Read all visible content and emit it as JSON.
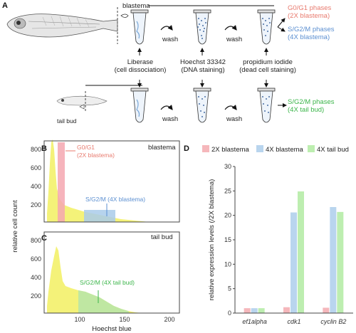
{
  "panel_a": {
    "label": "A",
    "blastema_label": "blastema",
    "tail_bud_label": "tail bud",
    "steps": [
      {
        "line1": "Liberase",
        "line2": "(cell dissociation)"
      },
      {
        "line1": "Hoechst 33342",
        "line2": "(DNA staining)"
      },
      {
        "line1": "propidium iodide",
        "line2": "(dead cell staining)"
      }
    ],
    "wash_label": "wash",
    "outputs_blastema": [
      {
        "line1": "G0/G1 phases",
        "line2": "(2X blastema)",
        "color": "#e87a6e"
      },
      {
        "line1": "S/G2/M phases",
        "line2": "(4X blastema)",
        "color": "#5b8fd1"
      }
    ],
    "output_tailbud": {
      "line1": "S/G2/M phases",
      "line2": "(4X tail bud)",
      "color": "#3bb54a"
    }
  },
  "panel_b": {
    "label": "B",
    "tag": "blastema",
    "annot_g0": "G0/G1",
    "annot_g0_sub": "(2X blastema)",
    "annot_s": "S/G2/M (4X blastema)",
    "colors": {
      "yellow": "#f4f279",
      "pink": "#f5a7b0",
      "blue": "#a9cbea",
      "green": "#b9e6a6"
    }
  },
  "panel_c": {
    "label": "C",
    "tag": "tail bud",
    "annot_s": "S/G2/M (4X tail bud)"
  },
  "hist_axes": {
    "ylabel": "relative cell count",
    "xlabel": "Hoechst blue",
    "xticks": [
      "100",
      "150",
      "200"
    ],
    "b_yticks": [
      "200",
      "400",
      "600",
      "800"
    ],
    "c_yticks": [
      "200",
      "400",
      "600",
      "800"
    ]
  },
  "panel_d": {
    "label": "D",
    "legend": [
      "2X blastema",
      "4X blastema",
      "4X tail bud"
    ],
    "colors": [
      "#f5b7bb",
      "#b9d5ee",
      "#bdeeb0"
    ],
    "ylabel": "relative expression levels (/2X blastema)",
    "yticks": [
      "0",
      "5",
      "10",
      "15",
      "20",
      "25",
      "30"
    ]
  },
  "chart_data": {
    "type": "bar",
    "categories": [
      "ef1alpha",
      "cdk1",
      "cyclin B2"
    ],
    "series": [
      {
        "name": "2X blastema",
        "values": [
          1,
          1.2,
          1.1
        ]
      },
      {
        "name": "4X blastema",
        "values": [
          1,
          20.6,
          21.7
        ]
      },
      {
        "name": "4X tail bud",
        "values": [
          1,
          24.9,
          20.7
        ]
      }
    ],
    "ylim": [
      0,
      30
    ],
    "ylabel": "relative expression levels (/2X blastema)"
  }
}
